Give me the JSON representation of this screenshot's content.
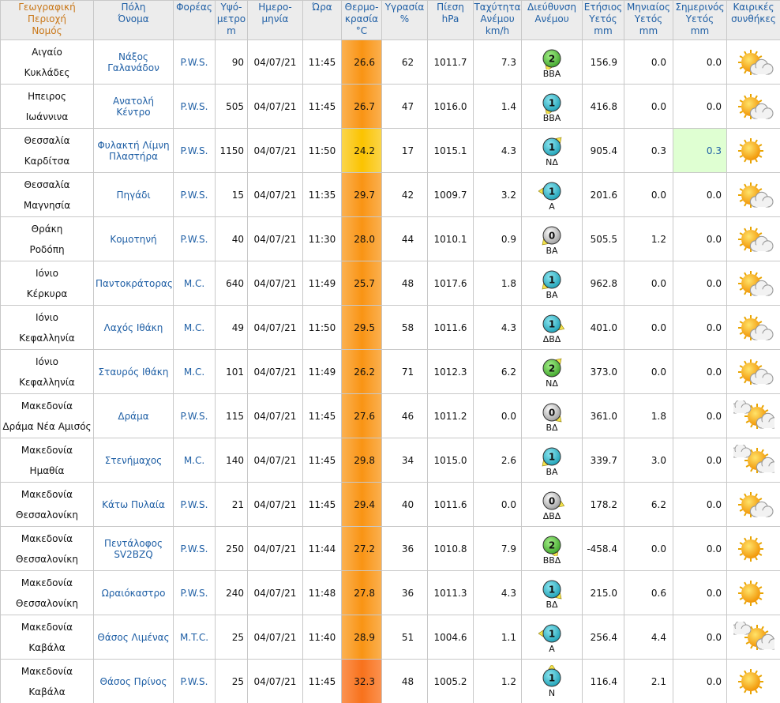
{
  "table": {
    "headers": [
      [
        "Γεωγραφική",
        "Περιοχή",
        "Νομός"
      ],
      [
        "Πόλη",
        "Όνομα"
      ],
      [
        "Φορέας"
      ],
      [
        "Υψό-",
        "μετρο",
        "m"
      ],
      [
        "Ημερο-",
        "μηνία"
      ],
      [
        "Ώρα"
      ],
      [
        "Θερμο-",
        "κρασία",
        "°C"
      ],
      [
        "Υγρασία",
        "%"
      ],
      [
        "Πίεση",
        "hPa"
      ],
      [
        "Ταχύτητα",
        "Ανέμου",
        "km/h"
      ],
      [
        "Διεύθυνση",
        "Ανέμου"
      ],
      [
        "Ετήσιος",
        "Υετός",
        "mm"
      ],
      [
        "Μηνιαίος",
        "Υετός",
        "mm"
      ],
      [
        "Σημερινός",
        "Υετός",
        "mm"
      ],
      [
        "Καιρικές",
        "συνθήκες"
      ]
    ],
    "rows": [
      {
        "region": "Αιγαίο",
        "prefecture": "Κυκλάδες",
        "city": "Νάξος Γαλανάδον",
        "operator": "P.W.S.",
        "altitude": "90",
        "date": "04/07/21",
        "time": "11:45",
        "temperature": "26.6",
        "humidity": "62",
        "pressure": "1011.7",
        "wind_speed": "7.3",
        "wind_force": "2",
        "wind_direction": "ΒΒΑ",
        "annual_rain": "156.9",
        "monthly_rain": "0.0",
        "daily_rain": "0.0"
      },
      {
        "region": "Ηπειρος",
        "prefecture": "Ιωάννινα",
        "city": "Ανατολή Κέντρο",
        "operator": "P.W.S.",
        "altitude": "505",
        "date": "04/07/21",
        "time": "11:45",
        "temperature": "26.7",
        "humidity": "47",
        "pressure": "1016.0",
        "wind_speed": "1.4",
        "wind_force": "1",
        "wind_direction": "ΒΒΑ",
        "annual_rain": "416.8",
        "monthly_rain": "0.0",
        "daily_rain": "0.0"
      },
      {
        "region": "Θεσσαλία",
        "prefecture": "Καρδίτσα",
        "city": "Φυλακτή Λίμνη Πλαστήρα",
        "operator": "P.W.S.",
        "altitude": "1150",
        "date": "04/07/21",
        "time": "11:50",
        "temperature": "24.2",
        "humidity": "17",
        "pressure": "1015.1",
        "wind_speed": "4.3",
        "wind_force": "1",
        "wind_direction": "ΝΔ",
        "annual_rain": "905.4",
        "monthly_rain": "0.3",
        "daily_rain": "0.3"
      },
      {
        "region": "Θεσσαλία",
        "prefecture": "Μαγνησία",
        "city": "Πηγάδι",
        "operator": "P.W.S.",
        "altitude": "15",
        "date": "04/07/21",
        "time": "11:35",
        "temperature": "29.7",
        "humidity": "42",
        "pressure": "1009.7",
        "wind_speed": "3.2",
        "wind_force": "1",
        "wind_direction": "Α",
        "annual_rain": "201.6",
        "monthly_rain": "0.0",
        "daily_rain": "0.0"
      },
      {
        "region": "Θράκη",
        "prefecture": "Ροδόπη",
        "city": "Κομοτηνή",
        "operator": "P.W.S.",
        "altitude": "40",
        "date": "04/07/21",
        "time": "11:30",
        "temperature": "28.0",
        "humidity": "44",
        "pressure": "1010.1",
        "wind_speed": "0.9",
        "wind_force": "0",
        "wind_direction": "ΒΑ",
        "annual_rain": "505.5",
        "monthly_rain": "1.2",
        "daily_rain": "0.0"
      },
      {
        "region": "Ιόνιο",
        "prefecture": "Κέρκυρα",
        "city": "Παντοκράτορας",
        "operator": "M.C.",
        "altitude": "640",
        "date": "04/07/21",
        "time": "11:49",
        "temperature": "25.7",
        "humidity": "48",
        "pressure": "1017.6",
        "wind_speed": "1.8",
        "wind_force": "1",
        "wind_direction": "ΒΑ",
        "annual_rain": "962.8",
        "monthly_rain": "0.0",
        "daily_rain": "0.0"
      },
      {
        "region": "Ιόνιο",
        "prefecture": "Κεφαλληνία",
        "city": "Λαχός Ιθάκη",
        "operator": "M.C.",
        "altitude": "49",
        "date": "04/07/21",
        "time": "11:50",
        "temperature": "29.5",
        "humidity": "58",
        "pressure": "1011.6",
        "wind_speed": "4.3",
        "wind_force": "1",
        "wind_direction": "ΔΒΔ",
        "annual_rain": "401.0",
        "monthly_rain": "0.0",
        "daily_rain": "0.0"
      },
      {
        "region": "Ιόνιο",
        "prefecture": "Κεφαλληνία",
        "city": "Σταυρός Ιθάκη",
        "operator": "M.C.",
        "altitude": "101",
        "date": "04/07/21",
        "time": "11:49",
        "temperature": "26.2",
        "humidity": "71",
        "pressure": "1012.3",
        "wind_speed": "6.2",
        "wind_force": "2",
        "wind_direction": "ΝΔ",
        "annual_rain": "373.0",
        "monthly_rain": "0.0",
        "daily_rain": "0.0"
      },
      {
        "region": "Μακεδονία",
        "prefecture": "Δράμα Νέα Αμισός",
        "city": "Δράμα",
        "operator": "P.W.S.",
        "altitude": "115",
        "date": "04/07/21",
        "time": "11:45",
        "temperature": "27.6",
        "humidity": "46",
        "pressure": "1011.2",
        "wind_speed": "0.0",
        "wind_force": "0",
        "wind_direction": "ΒΔ",
        "annual_rain": "361.0",
        "monthly_rain": "1.8",
        "daily_rain": "0.0"
      },
      {
        "region": "Μακεδονία",
        "prefecture": "Ημαθία",
        "city": "Στενήμαχος",
        "operator": "M.C.",
        "altitude": "140",
        "date": "04/07/21",
        "time": "11:45",
        "temperature": "29.8",
        "humidity": "34",
        "pressure": "1015.0",
        "wind_speed": "2.6",
        "wind_force": "1",
        "wind_direction": "ΒΑ",
        "annual_rain": "339.7",
        "monthly_rain": "3.0",
        "daily_rain": "0.0"
      },
      {
        "region": "Μακεδονία",
        "prefecture": "Θεσσαλονίκη",
        "city": "Κάτω Πυλαία",
        "operator": "P.W.S.",
        "altitude": "21",
        "date": "04/07/21",
        "time": "11:45",
        "temperature": "29.4",
        "humidity": "40",
        "pressure": "1011.6",
        "wind_speed": "0.0",
        "wind_force": "0",
        "wind_direction": "ΔΒΔ",
        "annual_rain": "178.2",
        "monthly_rain": "6.2",
        "daily_rain": "0.0"
      },
      {
        "region": "Μακεδονία",
        "prefecture": "Θεσσαλονίκη",
        "city": "Πεντάλοφος SV2BZQ",
        "operator": "P.W.S.",
        "altitude": "250",
        "date": "04/07/21",
        "time": "11:44",
        "temperature": "27.2",
        "humidity": "36",
        "pressure": "1010.8",
        "wind_speed": "7.9",
        "wind_force": "2",
        "wind_direction": "ΒΒΔ",
        "annual_rain": "-458.4",
        "monthly_rain": "0.0",
        "daily_rain": "0.0"
      },
      {
        "region": "Μακεδονία",
        "prefecture": "Θεσσαλονίκη",
        "city": "Ωραιόκαστρο",
        "operator": "P.W.S.",
        "altitude": "240",
        "date": "04/07/21",
        "time": "11:48",
        "temperature": "27.8",
        "humidity": "36",
        "pressure": "1011.3",
        "wind_speed": "4.3",
        "wind_force": "1",
        "wind_direction": "ΒΔ",
        "annual_rain": "215.0",
        "monthly_rain": "0.6",
        "daily_rain": "0.0"
      },
      {
        "region": "Μακεδονία",
        "prefecture": "Καβάλα",
        "city": "Θάσος Λιμένας",
        "operator": "M.T.C.",
        "altitude": "25",
        "date": "04/07/21",
        "time": "11:40",
        "temperature": "28.9",
        "humidity": "51",
        "pressure": "1004.6",
        "wind_speed": "1.1",
        "wind_force": "1",
        "wind_direction": "Α",
        "annual_rain": "256.4",
        "monthly_rain": "4.4",
        "daily_rain": "0.0"
      },
      {
        "region": "Μακεδονία",
        "prefecture": "Καβάλα",
        "city": "Θάσος Πρίνος",
        "operator": "P.W.S.",
        "altitude": "25",
        "date": "04/07/21",
        "time": "11:45",
        "temperature": "32.3",
        "humidity": "48",
        "pressure": "1005.2",
        "wind_speed": "1.2",
        "wind_force": "1",
        "wind_direction": "Ν",
        "annual_rain": "116.4",
        "monthly_rain": "2.1",
        "daily_rain": "0.0"
      }
    ]
  }
}
